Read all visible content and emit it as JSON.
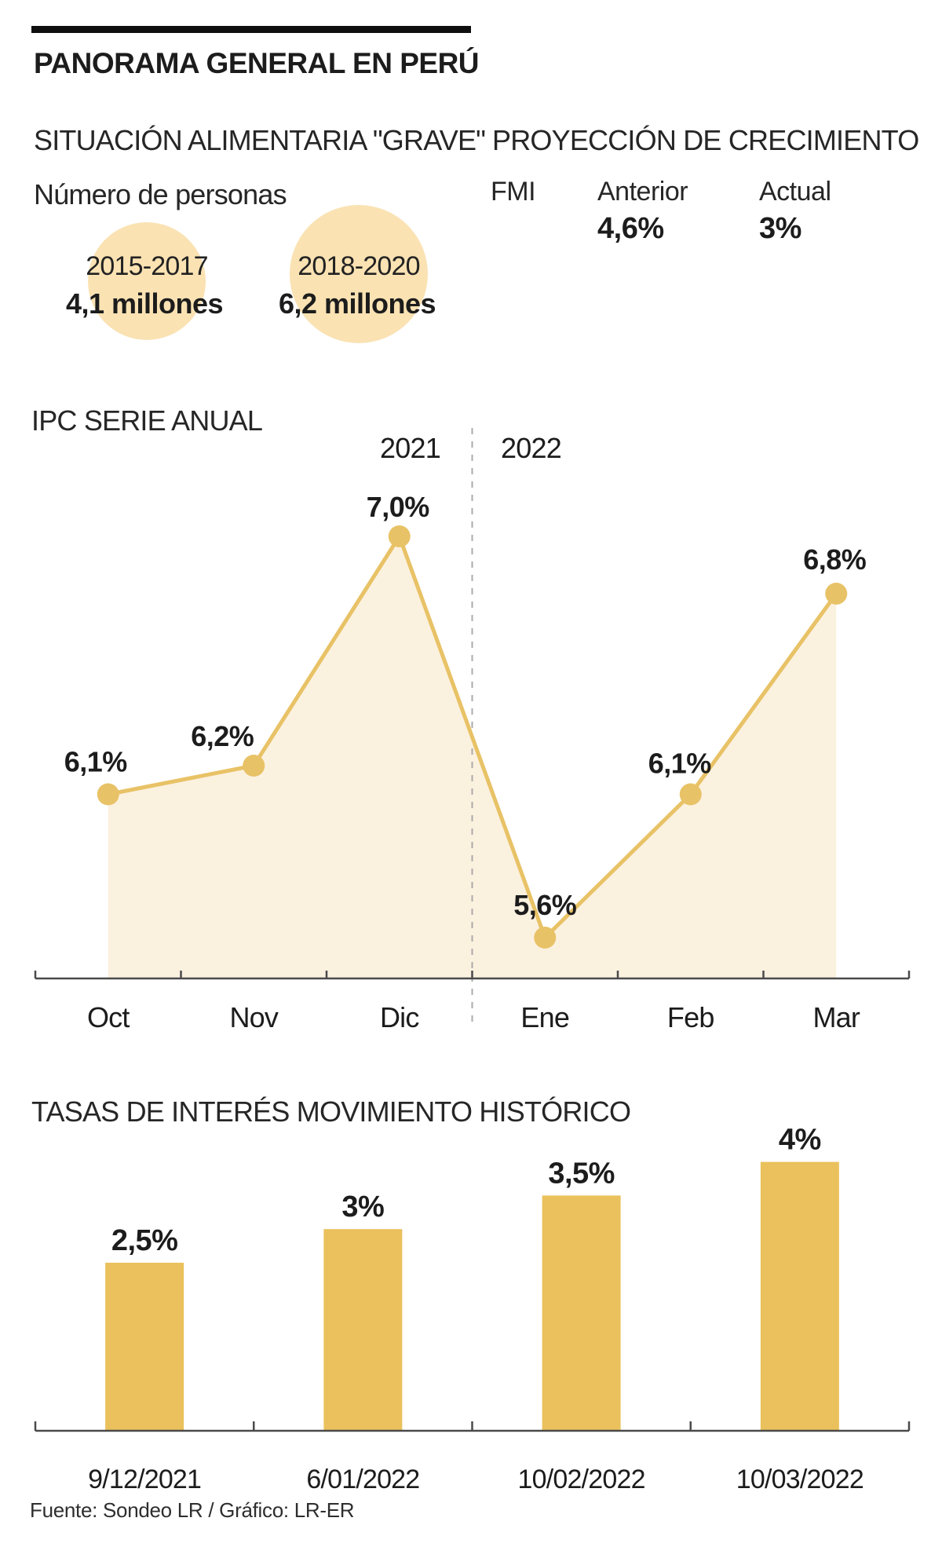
{
  "header": {
    "title": "PANORAMA GENERAL EN PERÚ"
  },
  "food": {
    "heading": "SITUACIÓN ALIMENTARIA \"GRAVE\"",
    "subheading": "Número de personas",
    "bubbles": [
      {
        "period": "2015-2017",
        "value": "4,1 millones"
      },
      {
        "period": "2018-2020",
        "value": "6,2 millones"
      }
    ]
  },
  "growth": {
    "heading": "PROYECCIÓN DE CRECIMIENTO",
    "org": "FMI",
    "prev_label": "Anterior",
    "prev_value": "4,6%",
    "curr_label": "Actual",
    "curr_value": "3%"
  },
  "chart_data": [
    {
      "type": "line",
      "title": "IPC SERIE ANUAL",
      "year_labels": [
        "2021",
        "2022"
      ],
      "categories": [
        "Oct",
        "Nov",
        "Dic",
        "Ene",
        "Feb",
        "Mar"
      ],
      "values": [
        6.1,
        6.2,
        7.0,
        5.6,
        6.1,
        6.8
      ],
      "point_labels": [
        "6,1%",
        "6,2%",
        "7,0%",
        "5,6%",
        "6,1%",
        "6,8%"
      ],
      "xlabel": "",
      "ylabel": "",
      "ylim": [
        5.4,
        7.2
      ],
      "grid": false,
      "legend_position": "none"
    },
    {
      "type": "bar",
      "title": "TASAS DE INTERÉS MOVIMIENTO HISTÓRICO",
      "categories": [
        "9/12/2021",
        "6/01/2022",
        "10/02/2022",
        "10/03/2022"
      ],
      "values": [
        2.5,
        3,
        3.5,
        4
      ],
      "value_labels": [
        "2,5%",
        "3%",
        "3,5%",
        "4%"
      ],
      "xlabel": "",
      "ylabel": "",
      "ylim": [
        0,
        4.5
      ],
      "grid": false,
      "legend_position": "none"
    }
  ],
  "footer": {
    "source": "Fuente: Sondeo LR / Gráfico: LR-ER"
  },
  "colors": {
    "gold": "#EAC15C",
    "gold_line": "#E8C266",
    "pale_bubble": "#FAE2B3",
    "area_fill": "#FBF1DF",
    "axis": "#4A4A4A",
    "divider": "#ABABAB",
    "text": "#1C1C1C"
  }
}
